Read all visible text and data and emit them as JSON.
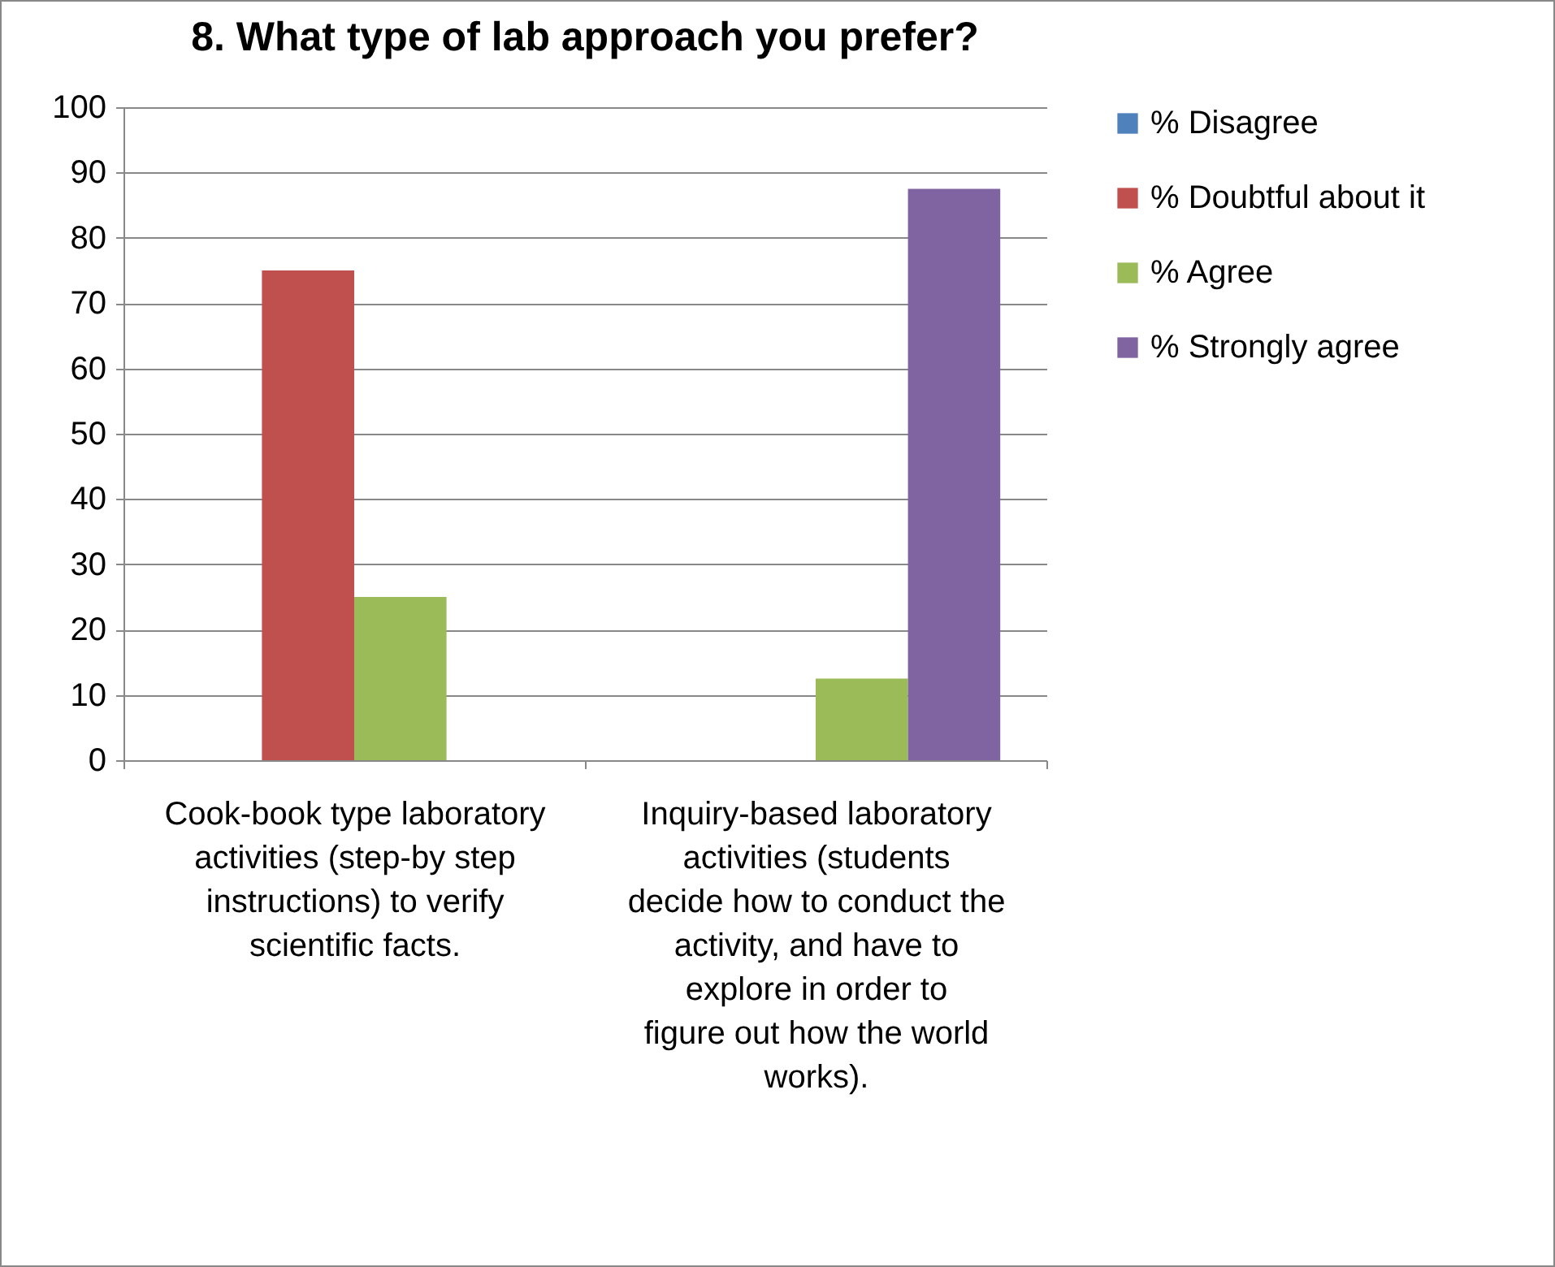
{
  "chart_data": {
    "type": "bar",
    "title": "8.  What type of lab approach you prefer?",
    "categories": [
      "Cook-book type laboratory activities (step-by step instructions) to verify scientific facts.",
      "Inquiry-based laboratory activities (students decide how to conduct the activity, and have to explore in order to figure out how the world works)."
    ],
    "series": [
      {
        "name": "% Disagree",
        "color": "#4f81bd",
        "values": [
          0,
          0
        ]
      },
      {
        "name": "% Doubtful about it",
        "color": "#c0504d",
        "values": [
          75,
          0
        ]
      },
      {
        "name": "% Agree",
        "color": "#9bbb59",
        "values": [
          25,
          12.5
        ]
      },
      {
        "name": "% Strongly agree",
        "color": "#8064a2",
        "values": [
          0,
          87.5
        ]
      }
    ],
    "ylim": [
      0,
      100
    ],
    "yticks": [
      0,
      10,
      20,
      30,
      40,
      50,
      60,
      70,
      80,
      90,
      100
    ],
    "grid": "y",
    "legend": "right"
  }
}
